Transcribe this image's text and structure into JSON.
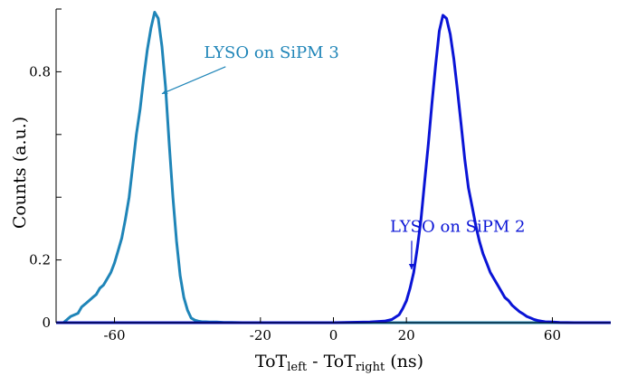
{
  "chart_data": {
    "type": "line",
    "xlabel": "ToT",
    "xlabel_sub_left": "left",
    "xlabel_mid": " - ToT",
    "xlabel_sub_right": "right",
    "xlabel_unit": " (ns)",
    "ylabel": "Counts (a.u.)",
    "xlim": [
      -76,
      76
    ],
    "ylim": [
      0,
      1.0
    ],
    "x_ticks": [
      -60,
      -20,
      0,
      20,
      60
    ],
    "x_tick_labels": [
      "-60",
      "-20",
      "0",
      "20",
      "60"
    ],
    "y_ticks": [
      0,
      0.2,
      0.8
    ],
    "y_tick_labels": [
      "0",
      "0.2",
      "0.8"
    ],
    "y_minor_ticks": [
      0.4,
      0.6,
      1.0
    ],
    "grid": false,
    "series": [
      {
        "name": "LYSO on SiPM 3",
        "color": "#1f85b8",
        "x": [
          -76,
          -74,
          -72,
          -70,
          -69,
          -68,
          -67,
          -66,
          -65,
          -64,
          -63,
          -62,
          -61,
          -60,
          -59,
          -58,
          -57,
          -56,
          -55,
          -54,
          -53,
          -52,
          -51,
          -50,
          -49,
          -48,
          -47,
          -46,
          -45,
          -44,
          -43,
          -42,
          -41,
          -40,
          -39,
          -38,
          -37,
          -36,
          -35,
          -34,
          -32,
          -30,
          -28,
          -25,
          -20,
          -10,
          0,
          10,
          20,
          30,
          40,
          50,
          60,
          70,
          76
        ],
        "y": [
          0,
          0,
          0.02,
          0.03,
          0.05,
          0.06,
          0.07,
          0.08,
          0.09,
          0.11,
          0.12,
          0.14,
          0.16,
          0.19,
          0.23,
          0.27,
          0.33,
          0.4,
          0.5,
          0.6,
          0.68,
          0.78,
          0.87,
          0.94,
          0.99,
          0.97,
          0.88,
          0.75,
          0.57,
          0.4,
          0.26,
          0.15,
          0.08,
          0.04,
          0.015,
          0.008,
          0.005,
          0.003,
          0.003,
          0.002,
          0.002,
          0.001,
          0.001,
          0,
          0,
          0,
          0,
          0,
          0,
          0,
          0,
          0,
          0,
          0,
          0
        ]
      },
      {
        "name": "LYSO on SiPM 2",
        "color": "#0a14d6",
        "x": [
          -76,
          -60,
          -40,
          -20,
          0,
          10,
          14,
          16,
          18,
          19,
          20,
          21,
          22,
          23,
          24,
          25,
          26,
          27,
          28,
          29,
          30,
          31,
          32,
          33,
          34,
          35,
          36,
          37,
          38,
          39,
          40,
          41,
          42,
          43,
          44,
          45,
          46,
          47,
          48,
          49,
          50,
          51,
          52,
          53,
          54,
          55,
          56,
          57,
          58,
          60,
          62,
          66,
          70,
          76
        ],
        "y": [
          0,
          0,
          0,
          0,
          0,
          0.002,
          0.005,
          0.01,
          0.025,
          0.045,
          0.07,
          0.11,
          0.16,
          0.24,
          0.33,
          0.45,
          0.57,
          0.7,
          0.82,
          0.93,
          0.98,
          0.97,
          0.92,
          0.84,
          0.74,
          0.63,
          0.52,
          0.43,
          0.37,
          0.31,
          0.26,
          0.22,
          0.19,
          0.16,
          0.14,
          0.12,
          0.1,
          0.08,
          0.07,
          0.055,
          0.045,
          0.035,
          0.028,
          0.02,
          0.015,
          0.01,
          0.007,
          0.005,
          0.003,
          0.002,
          0.001,
          0,
          0,
          0
        ]
      }
    ],
    "annotations": [
      {
        "text": "LYSO on SiPM 3",
        "color": "#1f85b8",
        "x": -35.5,
        "y": 0.845,
        "arrow_x": -47,
        "arrow_y": 0.73
      },
      {
        "text": "LYSO on SiPM 2",
        "color": "#0a14d6",
        "x": 15.5,
        "y": 0.29,
        "arrow_x": 21.4,
        "arrow_y": 0.17
      }
    ]
  }
}
